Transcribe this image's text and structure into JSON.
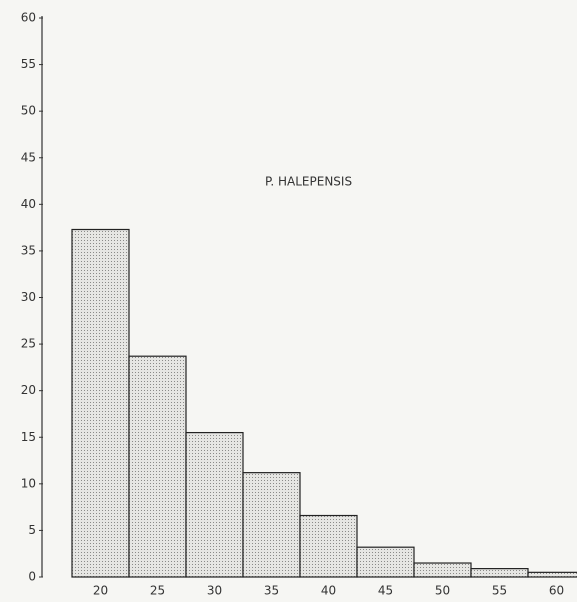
{
  "chart_data": {
    "type": "bar",
    "title": "P. HALEPENSIS",
    "categories": [
      "20",
      "25",
      "30",
      "35",
      "40",
      "45",
      "50",
      "55",
      "60"
    ],
    "values": [
      37.3,
      23.7,
      15.5,
      11.2,
      6.6,
      3.2,
      1.5,
      0.9,
      0.5
    ],
    "color": "#d9d9d6",
    "ylim": [
      0,
      60
    ],
    "yticks": [
      0,
      5,
      10,
      15,
      20,
      25,
      30,
      35,
      40,
      45,
      50,
      55,
      60
    ],
    "grid": false
  }
}
